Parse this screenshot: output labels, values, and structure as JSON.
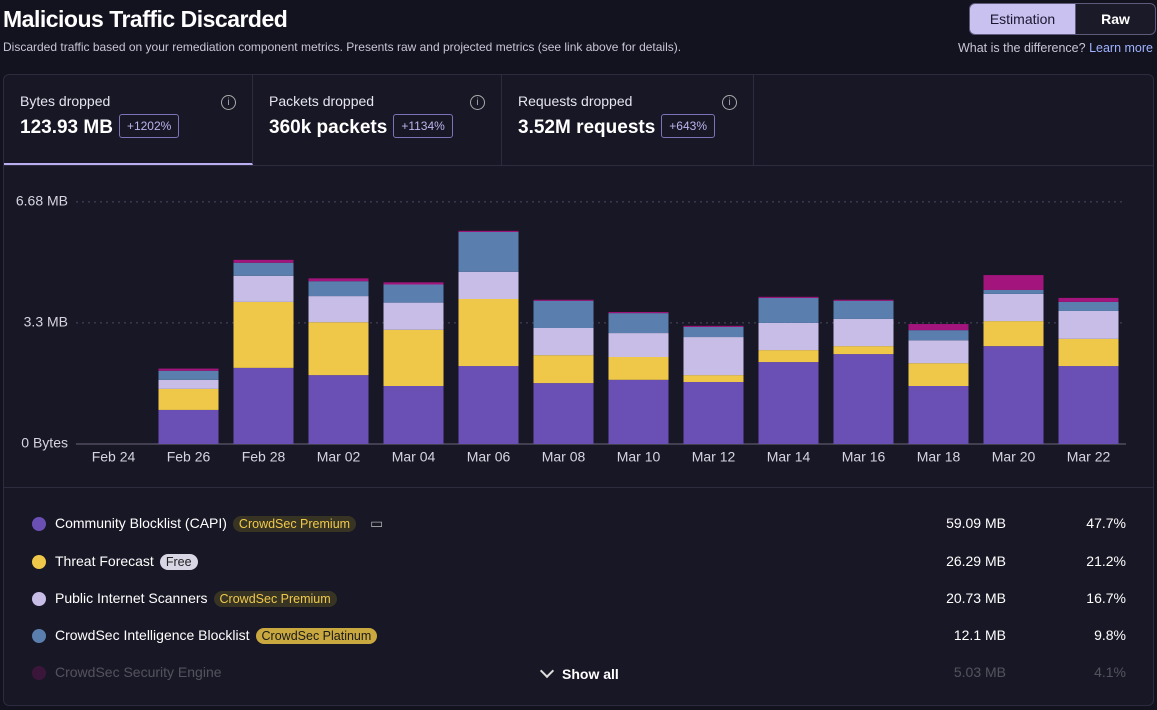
{
  "header": {
    "title": "Malicious Traffic Discarded",
    "subtitle": "Discarded traffic based on your remediation component metrics. Presents raw and projected metrics (see link above for details).",
    "toggle": [
      "Estimation",
      "Raw"
    ],
    "help": "What is the difference?",
    "link": "Learn more"
  },
  "tabs": [
    {
      "label": "Bytes dropped",
      "value": "123.93 MB",
      "change": "+1202%"
    },
    {
      "label": "Packets dropped",
      "value": "360k packets",
      "change": "+1134%"
    },
    {
      "label": "Requests dropped",
      "value": "3.52M requests",
      "change": "+643%"
    }
  ],
  "chart_data": {
    "type": "stacked-bar",
    "categories": [
      "Feb 24",
      "Feb 26",
      "Feb 28",
      "Mar 02",
      "Mar 04",
      "Mar 06",
      "Mar 08",
      "Mar 10",
      "Mar 12",
      "Mar 14",
      "Mar 16",
      "Mar 18",
      "Mar 20",
      "Mar 22"
    ],
    "series": [
      {
        "name": "Community Blocklist (CAPI)",
        "color": "#6a4fb5",
        "values": [
          0,
          0.94,
          2.1,
          1.9,
          1.6,
          2.15,
          1.68,
          1.77,
          1.71,
          2.26,
          2.48,
          1.6,
          2.7,
          2.15
        ]
      },
      {
        "name": "Threat Forecast",
        "color": "#efc84a",
        "values": [
          0,
          0.58,
          1.82,
          1.46,
          1.55,
          1.85,
          0.77,
          0.63,
          0.19,
          0.33,
          0.22,
          0.63,
          0.69,
          0.75
        ]
      },
      {
        "name": "Public Internet Scanners",
        "color": "#c8bde6",
        "values": [
          0,
          0.25,
          0.72,
          0.72,
          0.75,
          0.75,
          0.75,
          0.66,
          1.05,
          0.75,
          0.75,
          0.63,
          0.75,
          0.77
        ]
      },
      {
        "name": "CrowdSec Intelligence Blocklist",
        "color": "#5a7fae",
        "values": [
          0,
          0.25,
          0.36,
          0.41,
          0.5,
          1.1,
          0.75,
          0.55,
          0.28,
          0.69,
          0.5,
          0.28,
          0.11,
          0.25
        ]
      },
      {
        "name": "CrowdSec Security Engine",
        "color": "#a3157c",
        "values": [
          0,
          0.06,
          0.08,
          0.08,
          0.06,
          0.03,
          0.03,
          0.03,
          0.03,
          0.03,
          0.03,
          0.17,
          0.41,
          0.11
        ]
      }
    ],
    "ylim": [
      0,
      7.2
    ],
    "yticks": [
      {
        "value": 0,
        "label": "0 Bytes"
      },
      {
        "value": 3.34,
        "label": "3.3 MB"
      },
      {
        "value": 6.68,
        "label": "6.68 MB"
      }
    ],
    "grid": true
  },
  "legend": {
    "items": [
      {
        "badge": "CrowdSec Premium",
        "value": "59.09 MB",
        "share": "47.7%"
      },
      {
        "badge": "Free",
        "value": "26.29 MB",
        "share": "21.2%"
      },
      {
        "badge": "CrowdSec Premium",
        "value": "20.73 MB",
        "share": "16.7%"
      },
      {
        "badge": "CrowdSec Platinum",
        "value": "12.1 MB",
        "share": "9.8%"
      },
      {
        "value": "5.03 MB",
        "share": "4.1%"
      }
    ],
    "more": "Show all"
  }
}
